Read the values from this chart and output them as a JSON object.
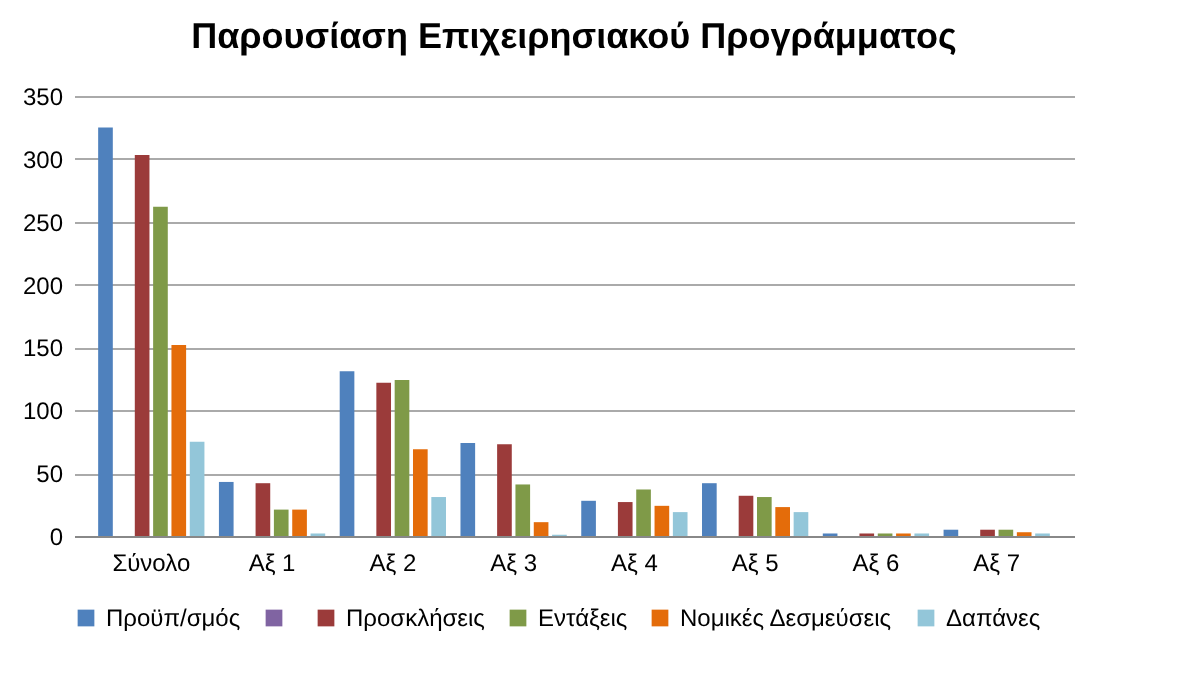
{
  "chart_data": {
    "type": "bar",
    "title": "Παρουσίαση Επιχειρησιακού Προγράμματος",
    "categories": [
      "Σύνολο",
      "Αξ 1",
      "Αξ 2",
      "Αξ 3",
      "Αξ 4",
      "Αξ 5",
      "Αξ 6",
      "Αξ 7"
    ],
    "series": [
      {
        "name": "Προϋπ/σμός",
        "color": "#4f81bd",
        "values": [
          325,
          43,
          131,
          74,
          28,
          42,
          2,
          5
        ]
      },
      {
        "color": "#8064a2",
        "values": [
          0,
          0,
          0,
          0,
          0,
          0,
          0,
          0
        ]
      },
      {
        "name": "Προσκλήσεις",
        "color": "#9b3b3a",
        "values": [
          303,
          42,
          122,
          73,
          27,
          32,
          2,
          5
        ]
      },
      {
        "name": "Εντάξεις",
        "color": "#7f9a48",
        "values": [
          262,
          21,
          124,
          41,
          37,
          31,
          2,
          5
        ]
      },
      {
        "name": "Νομικές Δεσμεύσεις",
        "color": "#e46c0a",
        "values": [
          152,
          21,
          69,
          11,
          24,
          23,
          2,
          3
        ]
      },
      {
        "name": "Δαπάνες",
        "color": "#93c6d9",
        "values": [
          75,
          2,
          31,
          1,
          19,
          19,
          2,
          2
        ]
      }
    ],
    "ylim": [
      0,
      350
    ],
    "yticks": [
      0,
      50,
      100,
      150,
      200,
      250,
      300,
      350
    ],
    "grid": "y",
    "legend": "bottom"
  }
}
